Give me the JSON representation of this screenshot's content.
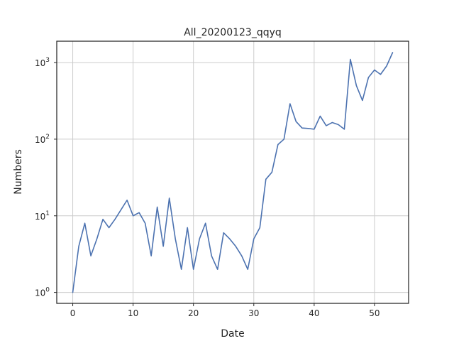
{
  "chart_data": {
    "type": "line",
    "title": "All_20200123_qqyq",
    "xlabel": "Date",
    "ylabel": "Numbers",
    "yscale": "log",
    "xlim": [
      -2.65,
      55.65
    ],
    "ylim": [
      0.72,
      1900
    ],
    "grid": true,
    "legend": "none",
    "x_ticks": [
      0,
      10,
      20,
      30,
      40,
      50
    ],
    "x_tick_labels": [
      "0",
      "10",
      "20",
      "30",
      "40",
      "50"
    ],
    "y_ticks": [
      1,
      10,
      100,
      1000
    ],
    "y_tick_labels": [
      {
        "base": "10",
        "exp": "0"
      },
      {
        "base": "10",
        "exp": "1"
      },
      {
        "base": "10",
        "exp": "2"
      },
      {
        "base": "10",
        "exp": "3"
      }
    ],
    "series": [
      {
        "color": "#4c72b0",
        "x": [
          0,
          1,
          2,
          3,
          4,
          5,
          6,
          7,
          8,
          9,
          10,
          11,
          12,
          13,
          14,
          15,
          16,
          17,
          18,
          19,
          20,
          21,
          22,
          23,
          24,
          25,
          26,
          27,
          28,
          29,
          30,
          31,
          32,
          33,
          34,
          35,
          36,
          37,
          38,
          39,
          40,
          41,
          42,
          43,
          44,
          45,
          46,
          47,
          48,
          49,
          50,
          51,
          52,
          53
        ],
        "y": [
          1,
          4,
          8,
          3,
          5,
          9,
          7,
          9,
          12,
          16,
          10,
          11,
          8,
          3,
          13,
          4,
          17,
          5,
          2,
          7,
          2,
          5,
          8,
          3,
          2,
          6,
          5,
          4,
          3,
          2,
          5,
          7,
          30,
          37,
          85,
          100,
          290,
          170,
          140,
          138,
          135,
          200,
          150,
          165,
          155,
          135,
          1100,
          500,
          320,
          640,
          800,
          700,
          900,
          1350
        ]
      }
    ]
  }
}
